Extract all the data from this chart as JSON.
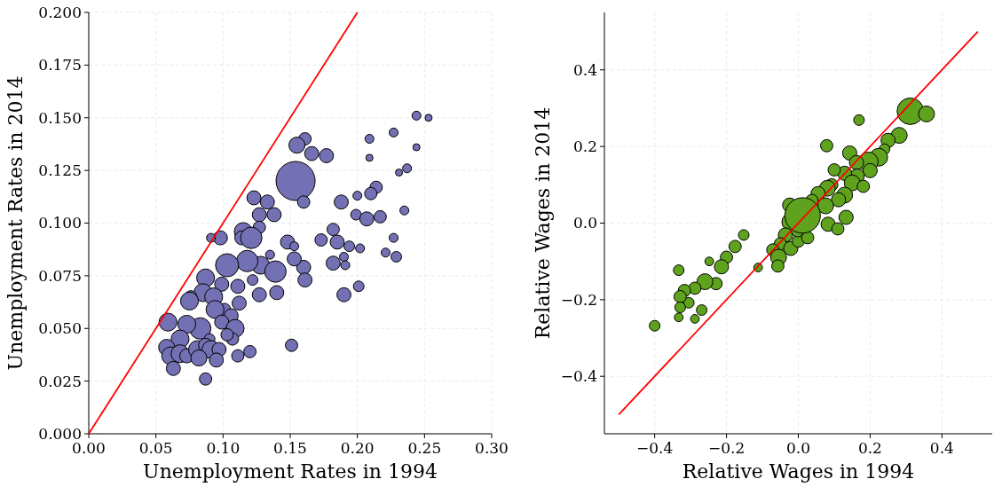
{
  "chart_data": [
    {
      "type": "bubble",
      "xlabel": "Unemployment Rates in 1994",
      "ylabel": "Unemployment Rates in 2014",
      "xlim": [
        0,
        0.3
      ],
      "ylim": [
        0,
        0.2
      ],
      "xticks": [
        {
          "value": 0,
          "label": "0.00"
        },
        {
          "value": 0.05,
          "label": "0.05"
        },
        {
          "value": 0.1,
          "label": "0.10"
        },
        {
          "value": 0.15,
          "label": "0.15"
        },
        {
          "value": 0.2,
          "label": "0.20"
        },
        {
          "value": 0.25,
          "label": "0.25"
        },
        {
          "value": 0.3,
          "label": "0.30"
        }
      ],
      "yticks": [
        {
          "value": 0,
          "label": "0.000"
        },
        {
          "value": 0.025,
          "label": "0.025"
        },
        {
          "value": 0.05,
          "label": "0.050"
        },
        {
          "value": 0.075,
          "label": "0.075"
        },
        {
          "value": 0.1,
          "label": "0.100"
        },
        {
          "value": 0.125,
          "label": "0.125"
        },
        {
          "value": 0.15,
          "label": "0.150"
        },
        {
          "value": 0.175,
          "label": "0.175"
        },
        {
          "value": 0.2,
          "label": "0.200"
        }
      ],
      "grid": true,
      "relative": false,
      "series": [
        {
          "color": "#7470b4",
          "x": [
            0.244,
            0.253,
            0.209,
            0.244,
            0.161,
            0.155,
            0.166,
            0.177,
            0.227,
            0.209,
            0.231,
            0.237,
            0.154,
            0.16,
            0.123,
            0.133,
            0.214,
            0.21,
            0.2,
            0.188,
            0.127,
            0.127,
            0.115,
            0.114,
            0.098,
            0.091,
            0.121,
            0.138,
            0.199,
            0.207,
            0.217,
            0.235,
            0.227,
            0.182,
            0.173,
            0.148,
            0.153,
            0.135,
            0.185,
            0.194,
            0.202,
            0.19,
            0.221,
            0.229,
            0.182,
            0.191,
            0.16,
            0.161,
            0.201,
            0.19,
            0.128,
            0.118,
            0.103,
            0.139,
            0.153,
            0.14,
            0.127,
            0.111,
            0.099,
            0.087,
            0.085,
            0.076,
            0.075,
            0.093,
            0.101,
            0.094,
            0.112,
            0.106,
            0.099,
            0.083,
            0.109,
            0.09,
            0.107,
            0.059,
            0.073,
            0.068,
            0.058,
            0.061,
            0.068,
            0.073,
            0.063,
            0.081,
            0.087,
            0.091,
            0.097,
            0.095,
            0.087,
            0.082,
            0.111,
            0.12,
            0.151,
            0.103,
            0.122
          ],
          "values": [
            0.151,
            0.15,
            0.14,
            0.136,
            0.14,
            0.137,
            0.133,
            0.132,
            0.143,
            0.131,
            0.124,
            0.126,
            0.12,
            0.11,
            0.112,
            0.11,
            0.117,
            0.114,
            0.113,
            0.11,
            0.104,
            0.098,
            0.096,
            0.093,
            0.093,
            0.093,
            0.093,
            0.104,
            0.104,
            0.102,
            0.103,
            0.106,
            0.093,
            0.097,
            0.092,
            0.091,
            0.089,
            0.085,
            0.091,
            0.089,
            0.088,
            0.084,
            0.086,
            0.084,
            0.081,
            0.08,
            0.079,
            0.073,
            0.07,
            0.066,
            0.08,
            0.082,
            0.08,
            0.077,
            0.083,
            0.067,
            0.066,
            0.07,
            0.071,
            0.074,
            0.067,
            0.065,
            0.063,
            0.065,
            0.059,
            0.059,
            0.062,
            0.056,
            0.053,
            0.05,
            0.05,
            0.045,
            0.045,
            0.053,
            0.052,
            0.045,
            0.041,
            0.037,
            0.038,
            0.037,
            0.031,
            0.04,
            0.042,
            0.04,
            0.04,
            0.035,
            0.026,
            0.036,
            0.037,
            0.039,
            0.042,
            0.047,
            0.073
          ],
          "sizes": [
            0.052,
            0.033,
            0.052,
            0.033,
            0.1,
            0.17,
            0.13,
            0.13,
            0.052,
            0.033,
            0.033,
            0.052,
            1,
            0.1,
            0.13,
            0.13,
            0.1,
            0.1,
            0.052,
            0.13,
            0.13,
            0.1,
            0.21,
            0.13,
            0.13,
            0.052,
            0.3,
            0.13,
            0.074,
            0.13,
            0.1,
            0.052,
            0.052,
            0.1,
            0.1,
            0.13,
            0.052,
            0.052,
            0.13,
            0.074,
            0.052,
            0.052,
            0.052,
            0.074,
            0.13,
            0.052,
            0.13,
            0.13,
            0.074,
            0.13,
            0.21,
            0.3,
            0.35,
            0.3,
            0.13,
            0.13,
            0.13,
            0.13,
            0.13,
            0.21,
            0.21,
            0.1,
            0.21,
            0.21,
            0.1,
            0.21,
            0.13,
            0.13,
            0.13,
            0.3,
            0.21,
            0.074,
            0.1,
            0.21,
            0.21,
            0.21,
            0.17,
            0.21,
            0.21,
            0.13,
            0.13,
            0.21,
            0.13,
            0.21,
            0.13,
            0.13,
            0.1,
            0.17,
            0.1,
            0.1,
            0.1,
            0.1,
            0.074
          ]
        },
        {
          "type": "line",
          "color": "#ff0000",
          "x": [
            0,
            0.2
          ],
          "values": [
            0,
            0.2
          ]
        }
      ]
    },
    {
      "type": "bubble",
      "xlabel": "Relative Wages in 1994",
      "ylabel": "Relative Wages in 2014",
      "xlim": [
        -0.54,
        0.54
      ],
      "ylim": [
        -0.55,
        0.55
      ],
      "xticks": [
        {
          "value": -0.4,
          "label": "−0.4"
        },
        {
          "value": -0.2,
          "label": "−0.2"
        },
        {
          "value": 0,
          "label": "0.0"
        },
        {
          "value": 0.2,
          "label": "0.2"
        },
        {
          "value": 0.4,
          "label": "0.4"
        }
      ],
      "yticks": [
        {
          "value": -0.4,
          "label": "−0.4"
        },
        {
          "value": -0.2,
          "label": "−0.2"
        },
        {
          "value": 0,
          "label": "0.0"
        },
        {
          "value": 0.2,
          "label": "0.2"
        },
        {
          "value": 0.4,
          "label": "0.4"
        }
      ],
      "grid": true,
      "relative": false,
      "series": [
        {
          "color": "#5fa21e",
          "x": [
            0.312,
            0.357,
            0.169,
            0.079,
            0.281,
            0.25,
            0.24,
            0.224,
            0.195,
            0.143,
            0.162,
            0.2,
            0.164,
            0.129,
            0.1,
            0.093,
            0.15,
            0.181,
            0.129,
            0.081,
            0.112,
            0.055,
            0.038,
            0.076,
            0.083,
            -0.021,
            -0.036,
            -0.05,
            -0.021,
            0,
            0.026,
            -0.071,
            -0.055,
            -0.057,
            -0.112,
            -0.152,
            -0.176,
            -0.2,
            -0.214,
            -0.248,
            -0.229,
            -0.26,
            -0.288,
            -0.317,
            -0.305,
            -0.329,
            -0.329,
            -0.269,
            -0.288,
            -0.333,
            -0.4,
            -0.333,
            -0.024,
            -0.002,
            0.11,
            0.133,
            0.012
          ],
          "values": [
            0.292,
            0.285,
            0.269,
            0.202,
            0.229,
            0.216,
            0.193,
            0.172,
            0.16,
            0.183,
            0.158,
            0.137,
            0.123,
            0.13,
            0.139,
            0.1,
            0.105,
            0.096,
            0.073,
            0.091,
            0.061,
            0.077,
            0.059,
            0.045,
            -0.003,
            0.003,
            -0.031,
            -0.054,
            -0.066,
            -0.047,
            -0.038,
            -0.07,
            -0.089,
            -0.112,
            -0.116,
            -0.031,
            -0.061,
            -0.089,
            -0.114,
            -0.1,
            -0.158,
            -0.153,
            -0.17,
            -0.176,
            -0.208,
            -0.192,
            -0.22,
            -0.227,
            -0.25,
            -0.246,
            -0.268,
            -0.123,
            0.047,
            -0.02,
            -0.015,
            0.015,
            0.02
          ],
          "sizes": [
            0.56,
            0.2,
            0.09,
            0.12,
            0.2,
            0.16,
            0.09,
            0.25,
            0.3,
            0.16,
            0.16,
            0.16,
            0.16,
            0.16,
            0.12,
            0.12,
            0.2,
            0.12,
            0.2,
            0.2,
            0.16,
            0.16,
            0.12,
            0.2,
            0.16,
            0.25,
            0.16,
            0.12,
            0.16,
            0.12,
            0.12,
            0.12,
            0.2,
            0.12,
            0.06,
            0.09,
            0.12,
            0.12,
            0.16,
            0.06,
            0.12,
            0.2,
            0.12,
            0.12,
            0.09,
            0.12,
            0.09,
            0.09,
            0.06,
            0.06,
            0.09,
            0.09,
            0.16,
            0.12,
            0.12,
            0.16,
            1
          ]
        },
        {
          "type": "line",
          "color": "#ff0000",
          "x": [
            -0.5,
            0.5
          ],
          "values": [
            -0.5,
            0.5
          ]
        }
      ]
    }
  ]
}
